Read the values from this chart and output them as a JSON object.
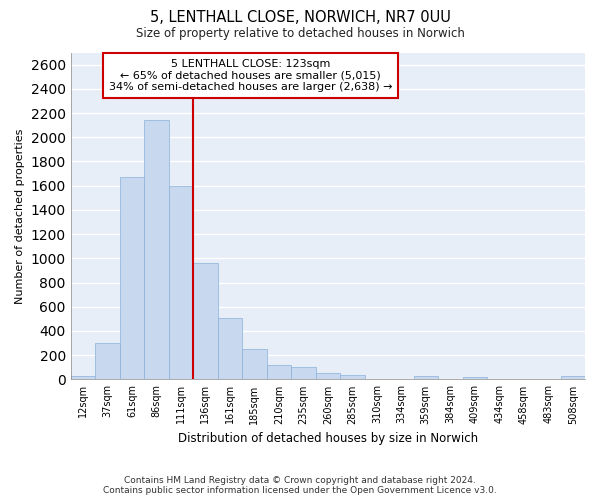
{
  "title_line1": "5, LENTHALL CLOSE, NORWICH, NR7 0UU",
  "title_line2": "Size of property relative to detached houses in Norwich",
  "xlabel": "Distribution of detached houses by size in Norwich",
  "ylabel": "Number of detached properties",
  "bar_color": "#c8d8ef",
  "bar_edge_color": "#8ab0d8",
  "background_color": "#e8eef8",
  "grid_color": "#ffffff",
  "annotation_line1": "5 LENTHALL CLOSE: 123sqm",
  "annotation_line2": "← 65% of detached houses are smaller (5,015)",
  "annotation_line3": "34% of semi-detached houses are larger (2,638) →",
  "vline_color": "#cc0000",
  "categories": [
    "12sqm",
    "37sqm",
    "61sqm",
    "86sqm",
    "111sqm",
    "136sqm",
    "161sqm",
    "185sqm",
    "210sqm",
    "235sqm",
    "260sqm",
    "285sqm",
    "310sqm",
    "334sqm",
    "359sqm",
    "384sqm",
    "409sqm",
    "434sqm",
    "458sqm",
    "483sqm",
    "508sqm"
  ],
  "values": [
    25,
    300,
    1670,
    2140,
    1595,
    960,
    505,
    250,
    120,
    100,
    50,
    40,
    0,
    0,
    30,
    0,
    20,
    0,
    0,
    0,
    25
  ],
  "ylim": [
    0,
    2700
  ],
  "yticks": [
    0,
    200,
    400,
    600,
    800,
    1000,
    1200,
    1400,
    1600,
    1800,
    2000,
    2200,
    2400,
    2600
  ],
  "footnote1": "Contains HM Land Registry data © Crown copyright and database right 2024.",
  "footnote2": "Contains public sector information licensed under the Open Government Licence v3.0."
}
